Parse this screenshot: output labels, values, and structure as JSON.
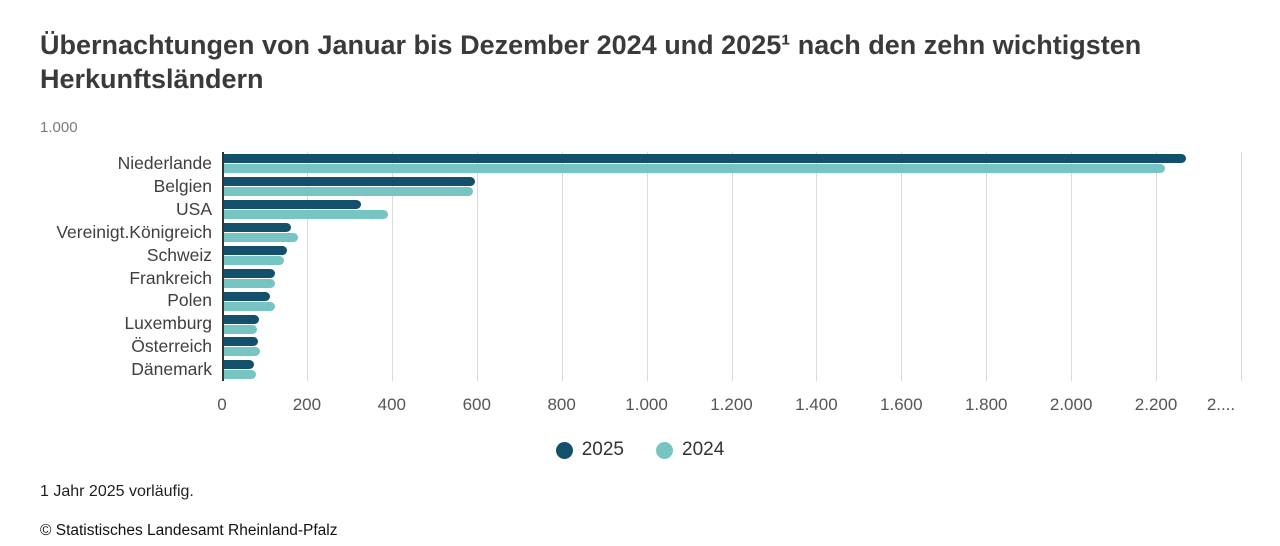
{
  "title": "Übernachtungen von Januar bis Dezember 2024 und 2025¹ nach den zehn wichtigsten Herkunftsländern",
  "unit_label": "1.000",
  "footnote": "1 Jahr 2025 vorläufig.",
  "copyright": "© Statistisches Landesamt Rheinland-Pfalz",
  "colors": {
    "series_2025": "#14506c",
    "series_2024": "#76c5c2",
    "gridline": "#dadada",
    "axis": "#333333",
    "title_text": "#3a3a3a"
  },
  "chart_data": {
    "type": "bar",
    "orientation": "horizontal",
    "title": "Übernachtungen von Januar bis Dezember 2024 und 2025¹ nach den zehn wichtigsten Herkunftsländern",
    "unit": "1.000",
    "categories": [
      "Niederlande",
      "Belgien",
      "USA",
      "Vereinigt.Königreich",
      "Schweiz",
      "Frankreich",
      "Polen",
      "Luxemburg",
      "Österreich",
      "Dänemark"
    ],
    "series": [
      {
        "name": "2025",
        "color": "#14506c",
        "values": [
          2270,
          596,
          328,
          163,
          153,
          125,
          114,
          87,
          84,
          76
        ]
      },
      {
        "name": "2024",
        "color": "#76c5c2",
        "values": [
          2220,
          591,
          390,
          178,
          147,
          124,
          125,
          82,
          90,
          80
        ]
      }
    ],
    "xlim": [
      0,
      2400
    ],
    "x_ticks": [
      0,
      200,
      400,
      600,
      800,
      1000,
      1200,
      1400,
      1600,
      1800,
      2000,
      2200,
      2400
    ],
    "x_tick_labels": [
      "0",
      "200",
      "400",
      "600",
      "800",
      "1.000",
      "1.200",
      "1.400",
      "1.600",
      "1.800",
      "2.000",
      "2.200",
      "2...."
    ],
    "grid": true,
    "legend_position": "bottom"
  }
}
